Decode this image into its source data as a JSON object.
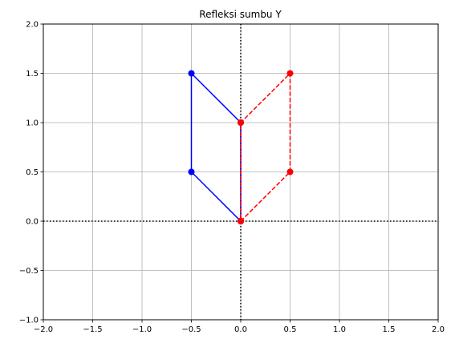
{
  "chart_data": {
    "type": "line",
    "title": "Refleksi sumbu Y",
    "xlabel": "",
    "ylabel": "",
    "xlim": [
      -2.0,
      2.0
    ],
    "ylim": [
      -1.0,
      2.0
    ],
    "grid": true,
    "legend": "none",
    "x_ticks": [
      -2.0,
      -1.5,
      -1.0,
      -0.5,
      0.0,
      0.5,
      1.0,
      1.5,
      2.0
    ],
    "x_tick_labels": [
      "−2.0",
      "−1.5",
      "−1.0",
      "−0.5",
      "0.0",
      "0.5",
      "1.0",
      "1.5",
      "2.0"
    ],
    "y_ticks": [
      -1.0,
      -0.5,
      0.0,
      0.5,
      1.0,
      1.5,
      2.0
    ],
    "y_tick_labels": [
      "−1.0",
      "−0.5",
      "0.0",
      "0.5",
      "1.0",
      "1.5",
      "2.0"
    ],
    "axes_lines": {
      "x": 0,
      "y": 0,
      "style": "dotted",
      "color": "#000000"
    },
    "series": [
      {
        "color": "#0000ff",
        "line_style": "solid",
        "marker": "circle",
        "x": [
          0,
          -0.5,
          -0.5,
          0,
          0
        ],
        "y": [
          0,
          0.5,
          1.5,
          1,
          0
        ]
      },
      {
        "color": "#ff0000",
        "line_style": "dashed",
        "marker": "circle",
        "x": [
          0,
          0.5,
          0.5,
          0,
          0
        ],
        "y": [
          0,
          0.5,
          1.5,
          1,
          0
        ]
      }
    ]
  }
}
